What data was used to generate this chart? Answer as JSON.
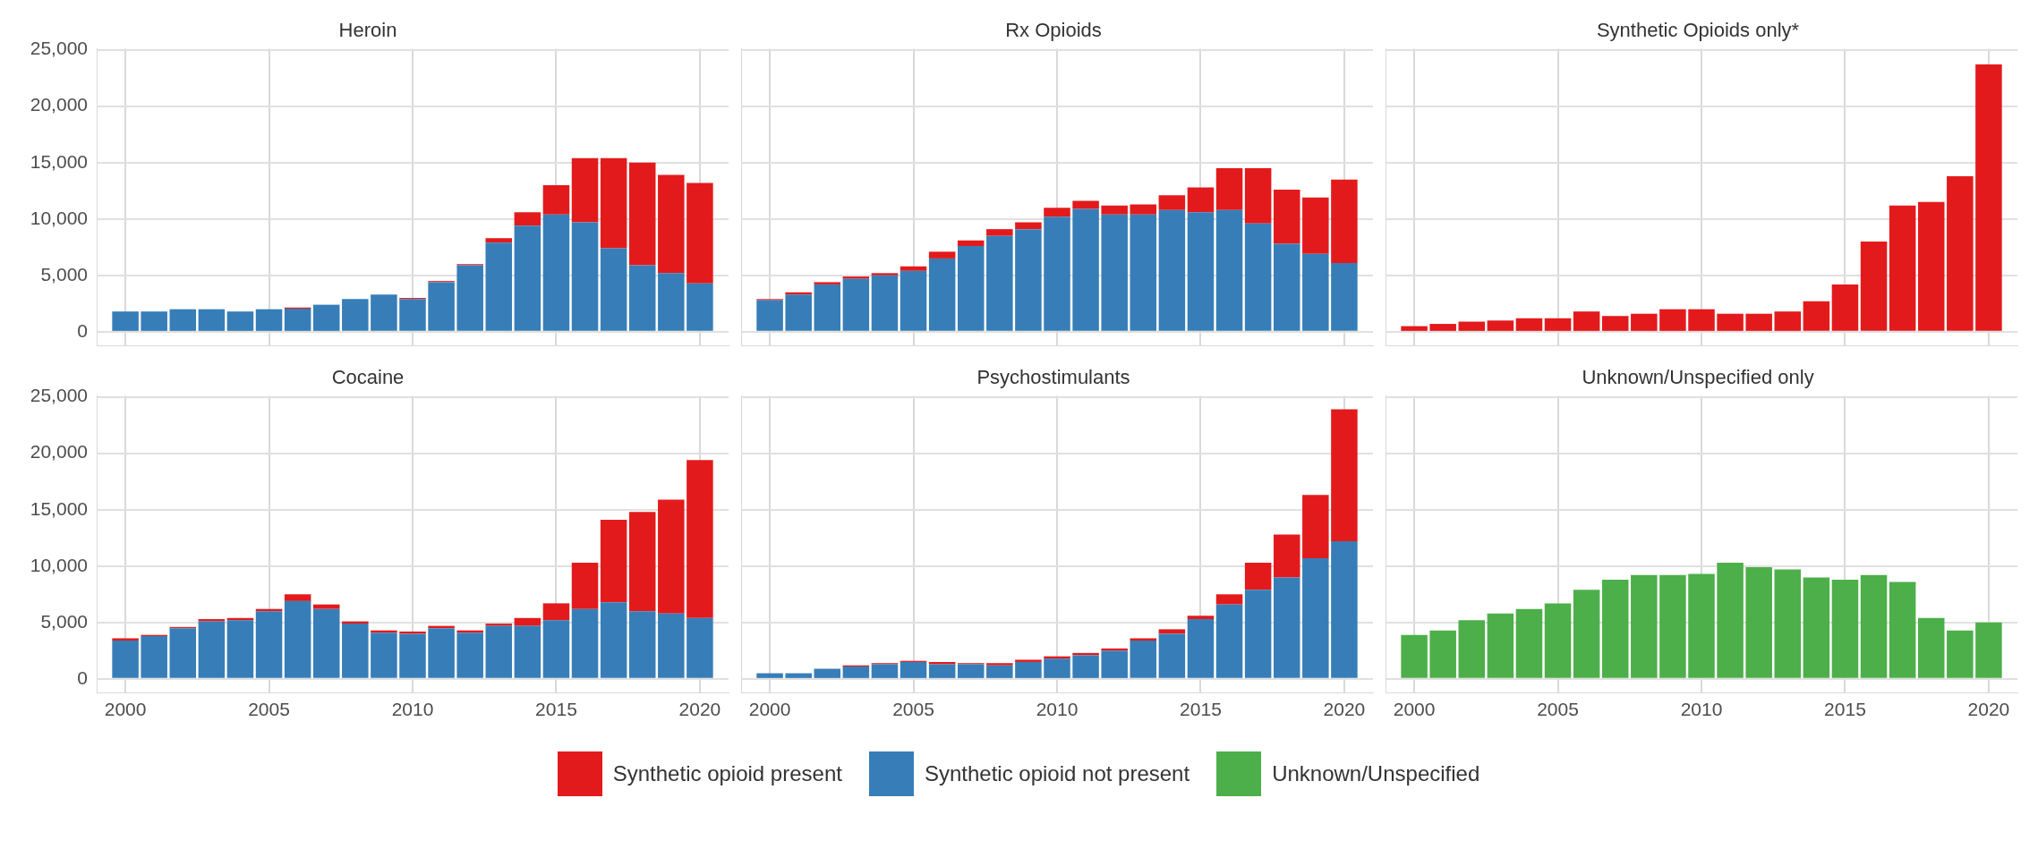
{
  "chart_data": [
    {
      "type": "bar",
      "title": "Heroin",
      "stacked": true,
      "grid": true,
      "legend": "bottom",
      "tick_labels": "y",
      "x": [
        2000,
        2001,
        2002,
        2003,
        2004,
        2005,
        2006,
        2007,
        2008,
        2009,
        2010,
        2011,
        2012,
        2013,
        2014,
        2015,
        2016,
        2017,
        2018,
        2019,
        2020
      ],
      "xlim": [
        1999,
        2021
      ],
      "xticks": [
        2000,
        2005,
        2010,
        2015,
        2020
      ],
      "ylim": [
        -1200,
        25100
      ],
      "yticks": [
        0,
        {
          "value": 5000,
          "label": "5,000"
        },
        {
          "value": 10000,
          "label": "10,000"
        },
        {
          "value": 15000,
          "label": "15,000"
        },
        {
          "value": 20000,
          "label": "20,000"
        },
        {
          "value": 25000,
          "label": "25,000"
        }
      ],
      "series": [
        {
          "name": "Synthetic opioid not present",
          "color": "#377eb8",
          "values": [
            1800,
            1800,
            2000,
            2000,
            1800,
            2000,
            2050,
            2400,
            2900,
            3300,
            2900,
            4400,
            5900,
            7900,
            9400,
            10400,
            9700,
            7400,
            5900,
            5200,
            4300
          ]
        },
        {
          "name": "Synthetic opioid present",
          "color": "#e31a1c",
          "values": [
            0,
            0,
            0,
            0,
            0,
            0,
            100,
            0,
            0,
            0,
            100,
            100,
            100,
            400,
            1200,
            2600,
            5700,
            8000,
            9100,
            8700,
            8900
          ]
        }
      ]
    },
    {
      "type": "bar",
      "title": "Rx Opioids",
      "stacked": true,
      "grid": true,
      "tick_labels": false,
      "x": [
        2000,
        2001,
        2002,
        2003,
        2004,
        2005,
        2006,
        2007,
        2008,
        2009,
        2010,
        2011,
        2012,
        2013,
        2014,
        2015,
        2016,
        2017,
        2018,
        2019,
        2020
      ],
      "xlim": [
        1999,
        2021
      ],
      "xticks": [
        2000,
        2005,
        2010,
        2015,
        2020
      ],
      "ylim": [
        -1200,
        25100
      ],
      "yticks": [
        0,
        5000,
        10000,
        15000,
        20000,
        25000
      ],
      "series": [
        {
          "name": "Synthetic opioid not present",
          "color": "#377eb8",
          "values": [
            2800,
            3300,
            4200,
            4700,
            5000,
            5400,
            6500,
            7600,
            8500,
            9100,
            10200,
            10900,
            10400,
            10400,
            10800,
            10600,
            10800,
            9600,
            7800,
            6900,
            6100
          ]
        },
        {
          "name": "Synthetic opioid present",
          "color": "#e31a1c",
          "values": [
            100,
            200,
            200,
            200,
            200,
            400,
            600,
            500,
            600,
            600,
            800,
            700,
            800,
            900,
            1300,
            2200,
            3700,
            4900,
            4800,
            5000,
            7400
          ]
        }
      ]
    },
    {
      "type": "bar",
      "title": "Synthetic Opioids only*",
      "stacked": true,
      "grid": true,
      "tick_labels": false,
      "x": [
        2000,
        2001,
        2002,
        2003,
        2004,
        2005,
        2006,
        2007,
        2008,
        2009,
        2010,
        2011,
        2012,
        2013,
        2014,
        2015,
        2016,
        2017,
        2018,
        2019,
        2020
      ],
      "xlim": [
        1999,
        2021
      ],
      "xticks": [
        2000,
        2005,
        2010,
        2015,
        2020
      ],
      "ylim": [
        -1200,
        25100
      ],
      "yticks": [
        0,
        5000,
        10000,
        15000,
        20000,
        25000
      ],
      "series": [
        {
          "name": "Synthetic opioid present",
          "color": "#e31a1c",
          "values": [
            500,
            700,
            900,
            1000,
            1200,
            1200,
            1800,
            1400,
            1600,
            2000,
            2000,
            1600,
            1600,
            1800,
            2700,
            4200,
            8000,
            11200,
            11500,
            13800,
            23700
          ]
        }
      ]
    },
    {
      "type": "bar",
      "title": "Cocaine",
      "stacked": true,
      "grid": true,
      "x": [
        2000,
        2001,
        2002,
        2003,
        2004,
        2005,
        2006,
        2007,
        2008,
        2009,
        2010,
        2011,
        2012,
        2013,
        2014,
        2015,
        2016,
        2017,
        2018,
        2019,
        2020
      ],
      "xlim": [
        1999,
        2021
      ],
      "xticks": [
        2000,
        2005,
        2010,
        2015,
        2020
      ],
      "ylim": [
        -1200,
        25100
      ],
      "yticks": [
        0,
        {
          "value": 5000,
          "label": "5,000"
        },
        {
          "value": 10000,
          "label": "10,000"
        },
        {
          "value": 15000,
          "label": "15,000"
        },
        {
          "value": 20000,
          "label": "20,000"
        },
        {
          "value": 25000,
          "label": "25,000"
        }
      ],
      "series": [
        {
          "name": "Synthetic opioid not present",
          "color": "#377eb8",
          "values": [
            3400,
            3800,
            4500,
            5100,
            5200,
            6000,
            6900,
            6200,
            4900,
            4100,
            4000,
            4500,
            4100,
            4700,
            4700,
            5200,
            6200,
            6800,
            6000,
            5800,
            5400
          ]
        },
        {
          "name": "Synthetic opioid present",
          "color": "#e31a1c",
          "values": [
            200,
            100,
            100,
            200,
            200,
            200,
            600,
            400,
            200,
            200,
            200,
            200,
            200,
            200,
            700,
            1500,
            4100,
            7300,
            8800,
            10100,
            14000
          ]
        }
      ]
    },
    {
      "type": "bar",
      "title": "Psychostimulants",
      "stacked": true,
      "grid": true,
      "tick_labels": "x",
      "x": [
        2000,
        2001,
        2002,
        2003,
        2004,
        2005,
        2006,
        2007,
        2008,
        2009,
        2010,
        2011,
        2012,
        2013,
        2014,
        2015,
        2016,
        2017,
        2018,
        2019,
        2020
      ],
      "xlim": [
        1999,
        2021
      ],
      "xticks": [
        2000,
        2005,
        2010,
        2015,
        2020
      ],
      "ylim": [
        -1200,
        25100
      ],
      "yticks": [
        0,
        5000,
        10000,
        15000,
        20000,
        25000
      ],
      "series": [
        {
          "name": "Synthetic opioid not present",
          "color": "#377eb8",
          "values": [
            500,
            500,
            900,
            1100,
            1300,
            1500,
            1300,
            1300,
            1200,
            1500,
            1800,
            2100,
            2500,
            3400,
            4000,
            5300,
            6600,
            7900,
            9000,
            10700,
            12200
          ]
        },
        {
          "name": "Synthetic opioid present",
          "color": "#e31a1c",
          "values": [
            0,
            0,
            0,
            100,
            100,
            100,
            200,
            100,
            200,
            200,
            200,
            200,
            200,
            200,
            400,
            300,
            900,
            2400,
            3800,
            5600,
            11700
          ]
        }
      ]
    },
    {
      "type": "bar",
      "title": "Unknown/Unspecified only",
      "stacked": true,
      "grid": true,
      "tick_labels": "x",
      "x": [
        2000,
        2001,
        2002,
        2003,
        2004,
        2005,
        2006,
        2007,
        2008,
        2009,
        2010,
        2011,
        2012,
        2013,
        2014,
        2015,
        2016,
        2017,
        2018,
        2019,
        2020
      ],
      "xlim": [
        1999,
        2021
      ],
      "xticks": [
        2000,
        2005,
        2010,
        2015,
        2020
      ],
      "ylim": [
        -1200,
        25100
      ],
      "yticks": [
        0,
        5000,
        10000,
        15000,
        20000,
        25000
      ],
      "series": [
        {
          "name": "Unknown/Unspecified",
          "color": "#4daf4a",
          "values": [
            3900,
            4300,
            5200,
            5800,
            6200,
            6700,
            7900,
            8800,
            9200,
            9200,
            9300,
            10300,
            9900,
            9700,
            9000,
            8800,
            9200,
            8600,
            5400,
            4300,
            5000
          ]
        }
      ]
    }
  ]
}
